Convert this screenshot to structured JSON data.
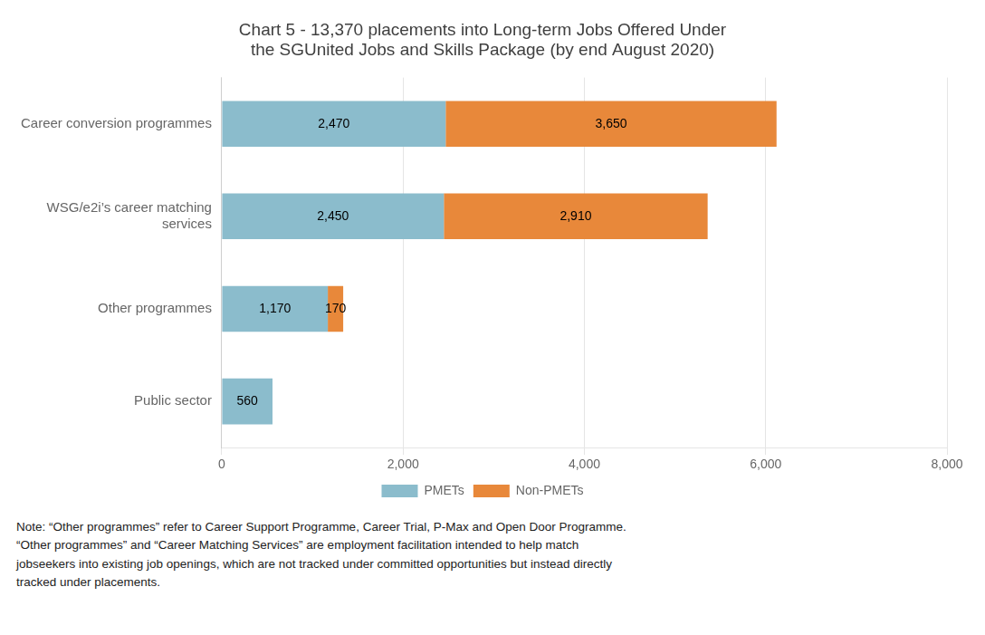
{
  "chart_data": {
    "type": "bar",
    "orientation": "horizontal",
    "stacked": true,
    "title": "Chart 5 - 13,370 placements into Long-term Jobs Offered Under\nthe SGUnited Jobs and Skills Package (by end August 2020)",
    "categories": [
      "Career conversion programmes",
      "WSG/e2i’s career matching\nservices",
      "Other programmes",
      "Public sector"
    ],
    "series": [
      {
        "name": "PMETs",
        "color": "#8BBCCC",
        "values": [
          2470,
          2450,
          1170,
          560
        ],
        "value_labels": [
          "2,470",
          "2,450",
          "1,170",
          "560"
        ]
      },
      {
        "name": "Non-PMETs",
        "color": "#E8883A",
        "values": [
          3650,
          2910,
          170,
          0
        ],
        "value_labels": [
          "3,650",
          "2,910",
          "170",
          null
        ]
      }
    ],
    "xlim": [
      0,
      8000
    ],
    "xticks": [
      0,
      {
        "value": 2000,
        "label": "2,000"
      },
      {
        "value": 4000,
        "label": "4,000"
      },
      {
        "value": 6000,
        "label": "6,000"
      },
      {
        "value": 8000,
        "label": "8,000"
      }
    ],
    "grid": true,
    "legend": "bottom",
    "data_labels": true,
    "note": "Note: “Other programmes” refer to Career Support Programme, Career Trial, P-Max and Open Door Programme.\n“Other programmes” and “Career Matching Services” are employment facilitation intended to help match\njobseekers into existing job openings, which are not tracked under committed opportunities but instead directly\ntracked under placements."
  }
}
